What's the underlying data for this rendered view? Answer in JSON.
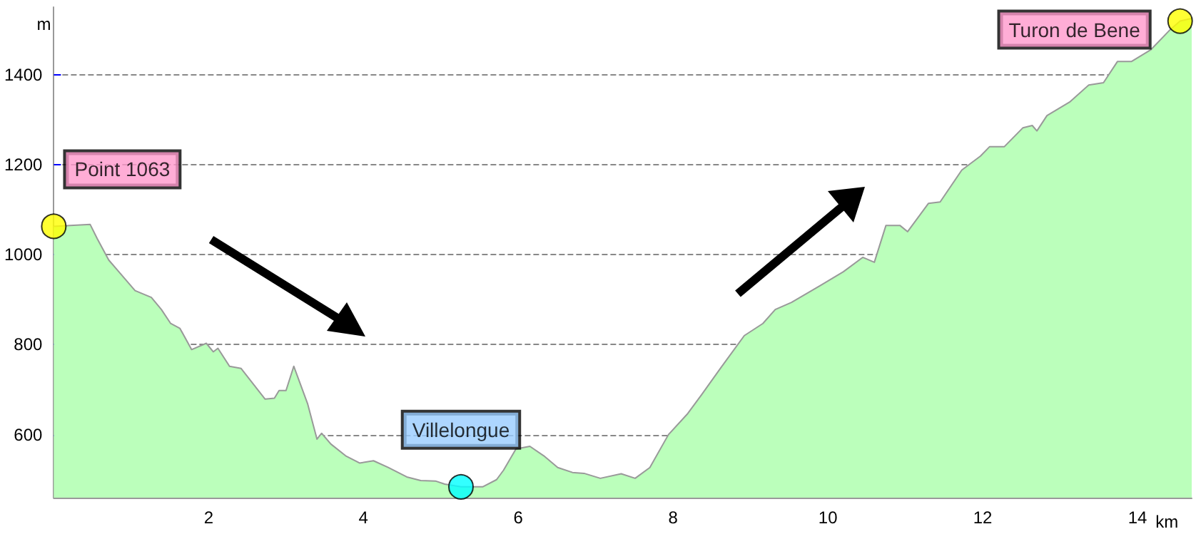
{
  "chart_data": {
    "type": "area",
    "xlabel": "km",
    "ylabel": "m",
    "xlim": [
      0,
      14.7
    ],
    "ylim": [
      460,
      1550
    ],
    "xticks": [
      2,
      4,
      6,
      8,
      10,
      12,
      14
    ],
    "yticks": [
      600,
      800,
      1000,
      1200,
      1400
    ],
    "grid": "y",
    "series": [
      {
        "color": "#bbffbb",
        "marker": "none",
        "x": [
          0,
          0.47,
          0.56,
          0.71,
          0.84,
          1.05,
          1.26,
          1.39,
          1.51,
          1.63,
          1.78,
          1.97,
          2.06,
          2.12,
          2.27,
          2.42,
          2.73,
          2.85,
          2.91,
          3.0,
          3.1,
          3.28,
          3.4,
          3.46,
          3.58,
          3.77,
          3.95,
          4.13,
          4.32,
          4.56,
          4.74,
          4.93,
          5.05,
          5.26,
          5.54,
          5.72,
          5.81,
          5.97,
          6.15,
          6.33,
          6.51,
          6.7,
          6.85,
          7.06,
          7.33,
          7.51,
          7.7,
          7.94,
          8.19,
          8.37,
          8.61,
          8.92,
          9.16,
          9.32,
          9.53,
          9.9,
          10.2,
          10.45,
          10.6,
          10.75,
          10.93,
          11.03,
          11.3,
          11.45,
          11.73,
          11.97,
          12.09,
          12.28,
          12.52,
          12.64,
          12.7,
          12.83,
          13.13,
          13.37,
          13.56,
          13.74,
          13.92,
          14.17,
          14.41,
          14.55,
          14.7
        ],
        "values": [
          1063,
          1067,
          1036,
          988,
          962,
          920,
          905,
          878,
          847,
          836,
          789,
          803,
          784,
          792,
          752,
          747,
          679,
          681,
          698,
          698,
          752,
          668,
          590,
          603,
          579,
          553,
          537,
          542,
          527,
          506,
          498,
          497,
          490,
          484,
          484,
          500,
          521,
          568,
          574,
          553,
          527,
          516,
          514,
          503,
          513,
          503,
          527,
          600,
          647,
          689,
          747,
          820,
          847,
          878,
          894,
          931,
          962,
          994,
          983,
          1065,
          1065,
          1051,
          1114,
          1117,
          1188,
          1219,
          1240,
          1240,
          1282,
          1287,
          1275,
          1309,
          1340,
          1377,
          1382,
          1429,
          1429,
          1455,
          1498,
          1519,
          1525
        ]
      },
      {
        "type": "scatter",
        "marker": "circle",
        "x": [
          0,
          5.26,
          14.55
        ],
        "values": [
          1063,
          484,
          1519
        ],
        "colors": [
          "#ffff00",
          "#00ffff",
          "#ffff00"
        ]
      }
    ],
    "annotations": [
      {
        "text": "Point 1063",
        "x": 0,
        "y": 1063
      },
      {
        "text": "Villelongue",
        "x": 5.26,
        "y": 484
      },
      {
        "text": "Turon de Bene",
        "x": 14.55,
        "y": 1519
      }
    ]
  }
}
